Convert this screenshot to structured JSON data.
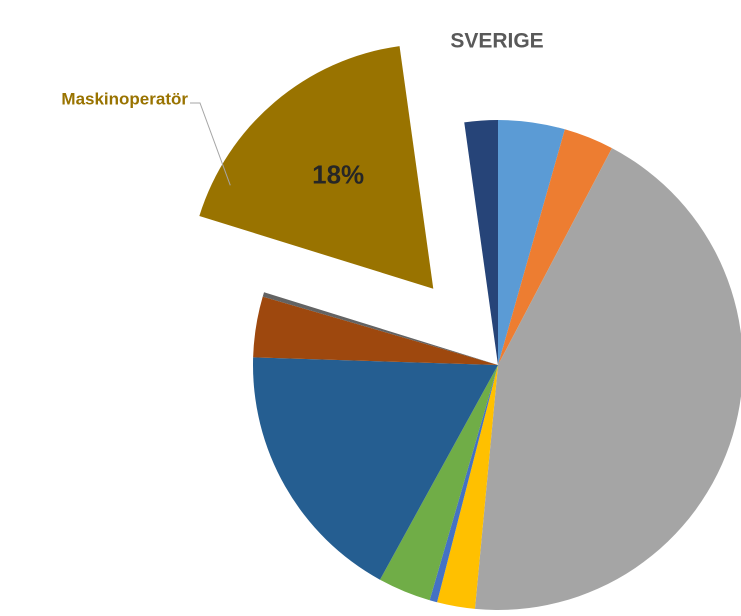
{
  "chart_data": {
    "type": "pie",
    "title": "SVERIGE",
    "categories": [
      null,
      null,
      null,
      null,
      null,
      null,
      null,
      null,
      null,
      "Maskinoperatör",
      null
    ],
    "values": [
      4.4,
      3.3,
      43.8,
      2.5,
      0.5,
      3.5,
      17.5,
      4,
      0.3,
      18,
      2.2
    ],
    "value_labels": [
      null,
      null,
      null,
      null,
      null,
      null,
      null,
      null,
      null,
      "18%",
      null
    ],
    "colors": [
      "#5b9bd5",
      "#ed7d31",
      "#a5a5a5",
      "#ffc000",
      "#4472c4",
      "#70ad47",
      "#255e91",
      "#9e480e",
      "#636363",
      "#997300",
      "#264478"
    ],
    "explode": [
      false,
      false,
      false,
      false,
      false,
      false,
      false,
      false,
      false,
      true,
      false
    ]
  }
}
